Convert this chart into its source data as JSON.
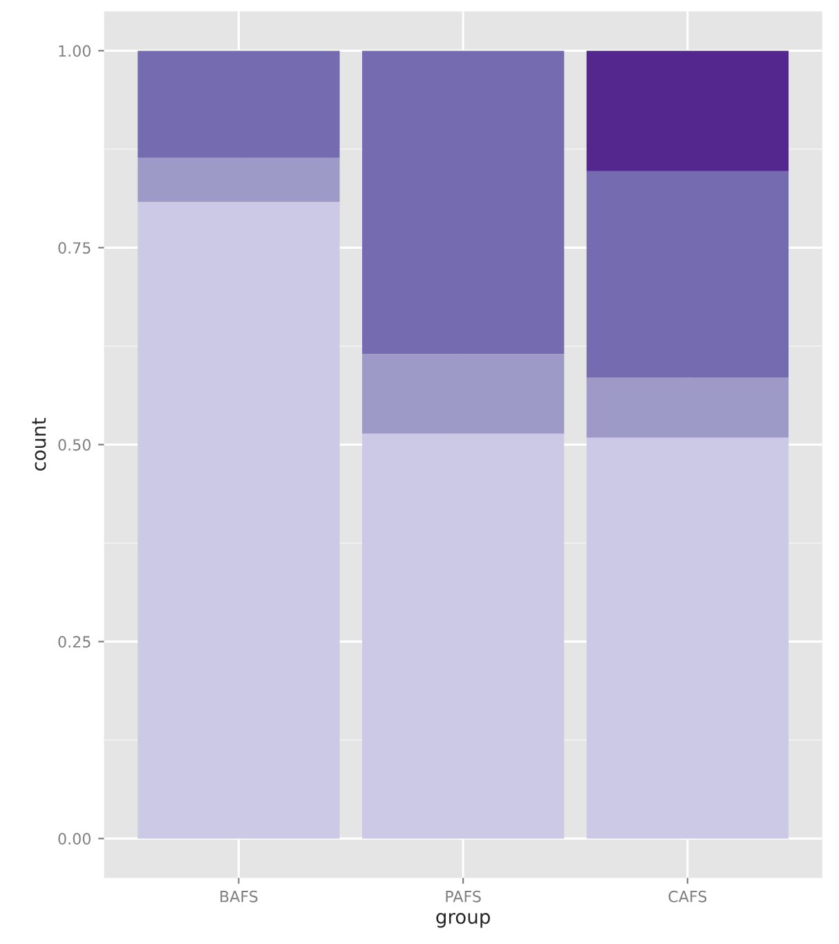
{
  "chart_data": {
    "type": "bar",
    "stacked": true,
    "xlabel": "group",
    "ylabel": "count",
    "categories": [
      "BAFS",
      "PAFS",
      "CAFS"
    ],
    "series": [
      {
        "color": "#cbc9e6",
        "values": [
          0.808,
          0.514,
          0.509
        ]
      },
      {
        "color": "#9e9ac8",
        "values": [
          0.056,
          0.101,
          0.076
        ]
      },
      {
        "color": "#756bb1",
        "values": [
          0.136,
          0.385,
          0.262
        ]
      },
      {
        "color": "#54278f",
        "values": [
          null,
          null,
          0.153
        ]
      }
    ],
    "ylim": [
      -0.05,
      1.05
    ],
    "yticks": [
      {
        "value": 0,
        "label": "0.00"
      },
      {
        "value": 0.25,
        "label": "0.25"
      },
      {
        "value": 0.5,
        "label": "0.50"
      },
      {
        "value": 0.75,
        "label": "0.75"
      },
      {
        "value": 1,
        "label": "1.00"
      }
    ],
    "grid": true,
    "legend": false
  }
}
